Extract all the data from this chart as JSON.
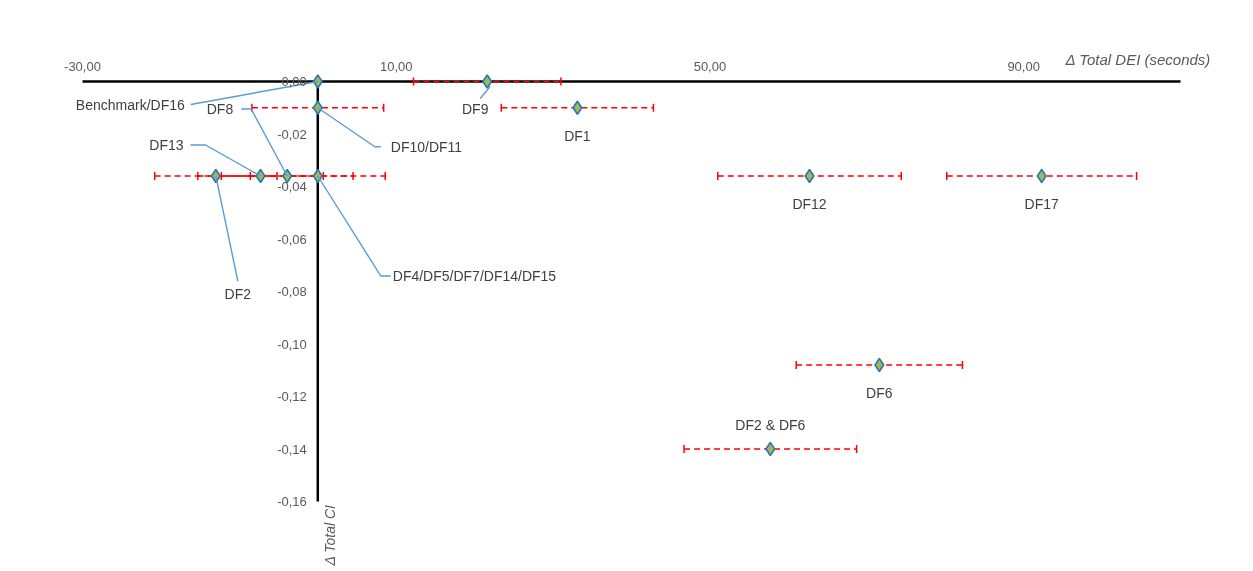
{
  "chart_data": {
    "type": "scatter",
    "xlabel": "Δ Total DEI (seconds)",
    "ylabel": "Δ Total CI",
    "x": [
      0,
      21.6,
      0,
      33.1,
      -3.9,
      -7.3,
      -13.0,
      0,
      62.7,
      92.3,
      71.6,
      57.7
    ],
    "series": [
      {
        "color": "#9bbb59",
        "values": [
          0,
          0,
          -0.01,
          -0.01,
          -0.036,
          -0.036,
          -0.036,
          -0.036,
          -0.036,
          -0.036,
          -0.108,
          -0.14
        ],
        "xerrors": [
          null,
          9.4,
          8.4,
          9.7,
          8.4,
          8.0,
          7.8,
          8.6,
          11.7,
          12.1,
          10.6,
          11.0
        ]
      }
    ],
    "xlim": [
      -30,
      110
    ],
    "xticks": [
      {
        "value": -30,
        "label": "-30,00"
      },
      {
        "value": 10,
        "label": "10,00"
      },
      {
        "value": 50,
        "label": "50,00"
      },
      {
        "value": 90,
        "label": "90,00"
      }
    ],
    "ylim": [
      -0.16,
      0
    ],
    "yticks": [
      {
        "value": 0,
        "label": "0,00"
      },
      {
        "value": -0.02,
        "label": "-0,02"
      },
      {
        "value": -0.04,
        "label": "-0,04"
      },
      {
        "value": -0.06,
        "label": "-0,06"
      },
      {
        "value": -0.08,
        "label": "-0,08"
      },
      {
        "value": -0.1,
        "label": "-0,10"
      },
      {
        "value": -0.12,
        "label": "-0,12"
      },
      {
        "value": -0.14,
        "label": "-0,14"
      },
      {
        "value": -0.16,
        "label": "-0,16"
      }
    ],
    "marker": "diamond",
    "grid": false,
    "annotations": [
      {
        "text": "Benchmark/DF16",
        "x": 0,
        "y": 0
      },
      {
        "text": "DF9",
        "x": 21.6,
        "y": 0
      },
      {
        "text": "DF10/DF11",
        "x": 0,
        "y": -0.01
      },
      {
        "text": "DF1",
        "x": 33.1,
        "y": -0.01
      },
      {
        "text": "DF8",
        "x": -3.9,
        "y": -0.036
      },
      {
        "text": "DF13",
        "x": -7.3,
        "y": -0.036
      },
      {
        "text": "DF2",
        "x": -13.0,
        "y": -0.036
      },
      {
        "text": "DF4/DF5/DF7/DF14/DF15",
        "x": 0,
        "y": -0.036
      },
      {
        "text": "DF12",
        "x": 62.7,
        "y": -0.036
      },
      {
        "text": "DF17",
        "x": 92.3,
        "y": -0.036
      },
      {
        "text": "DF6",
        "x": 71.6,
        "y": -0.108
      },
      {
        "text": "DF2 & DF6",
        "x": 57.7,
        "y": -0.14
      }
    ]
  }
}
